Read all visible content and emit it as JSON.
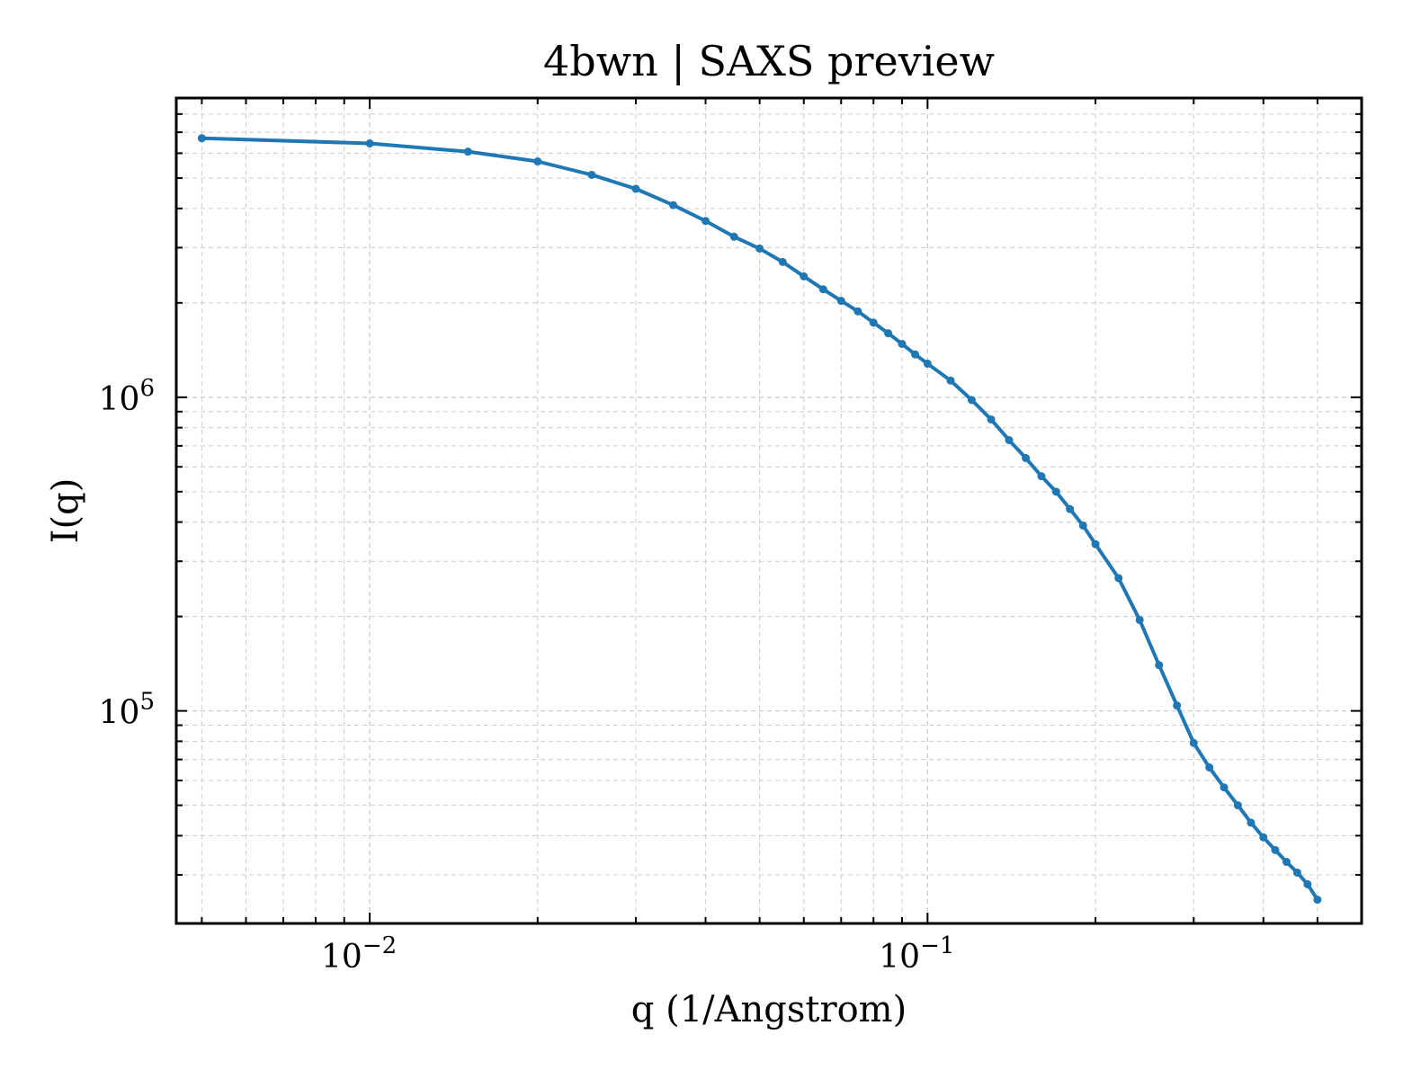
{
  "chart_data": {
    "type": "line",
    "title": "4bwn | SAXS preview",
    "xlabel": "q (1/Angstrom)",
    "ylabel": "I(q)",
    "xscale": "log",
    "yscale": "log",
    "xlim": [
      0.0045,
      0.6
    ],
    "ylim": [
      21000,
      9000000
    ],
    "grid": true,
    "legend": "none",
    "series_color": "#1f77b4",
    "x_ticks": [
      {
        "base": "10",
        "exp": "−2",
        "value": 0.01
      },
      {
        "base": "10",
        "exp": "−1",
        "value": 0.1
      }
    ],
    "y_ticks": [
      {
        "base": "10",
        "exp": "5",
        "value": 100000
      },
      {
        "base": "10",
        "exp": "6",
        "value": 1000000
      }
    ],
    "series": [
      {
        "x": [
          0.005,
          0.01,
          0.015,
          0.02,
          0.025,
          0.03,
          0.035,
          0.04,
          0.045,
          0.05,
          0.055,
          0.06,
          0.065,
          0.07,
          0.075,
          0.08,
          0.085,
          0.09,
          0.095,
          0.1,
          0.11,
          0.12,
          0.13,
          0.14,
          0.15,
          0.16,
          0.17,
          0.18,
          0.19,
          0.2,
          0.22,
          0.24,
          0.26,
          0.28,
          0.3,
          0.32,
          0.34,
          0.36,
          0.38,
          0.4,
          0.42,
          0.44,
          0.46,
          0.48,
          0.5
        ],
        "y": [
          6700000,
          6450000,
          6070000,
          5650000,
          5120000,
          4620000,
          4100000,
          3650000,
          3250000,
          2980000,
          2700000,
          2430000,
          2210000,
          2030000,
          1880000,
          1730000,
          1600000,
          1480000,
          1370000,
          1280000,
          1130000,
          980000,
          850000,
          730000,
          640000,
          560000,
          500000,
          440000,
          390000,
          340000,
          265000,
          195000,
          140000,
          104000,
          79000,
          66000,
          57000,
          50000,
          44000,
          39500,
          36000,
          33000,
          30500,
          28000,
          25000
        ]
      }
    ]
  }
}
